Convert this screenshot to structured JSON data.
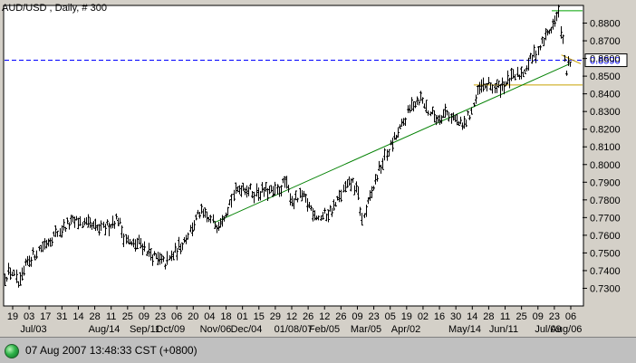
{
  "chart_data": {
    "type": "ohlc",
    "title": "AUD/USD , Daily, # 300",
    "ylim": [
      0.72,
      0.89
    ],
    "y_ticks": [
      "0.7300",
      "0.7400",
      "0.7500",
      "0.7600",
      "0.7700",
      "0.7800",
      "0.7900",
      "0.8000",
      "0.8100",
      "0.8200",
      "0.8300",
      "0.8400",
      "0.8500",
      "0.8600",
      "0.8700",
      "0.8800"
    ],
    "x_day_labels": [
      "19",
      "03",
      "17",
      "31",
      "14",
      "28",
      "11",
      "25",
      "09",
      "23",
      "06",
      "20",
      "04",
      "18",
      "01",
      "15",
      "29",
      "12",
      "26",
      "12",
      "26",
      "09",
      "23",
      "05",
      "19",
      "02",
      "16",
      "30",
      "14",
      "28",
      "11",
      "25",
      "09",
      "23",
      "06"
    ],
    "x_month_labels": [
      "Jul/03",
      "Aug/14",
      "Sep/11",
      "Oct/09",
      "Nov/06",
      "Dec/04",
      "01/08/07",
      "Feb/05",
      "Mar/05",
      "Apr/02",
      "May/14",
      "Jun/11",
      "Jul/09",
      "Aug/06"
    ],
    "current_price": "0.8590",
    "horizontal_level": 0.859,
    "support_level": 0.845,
    "resistance_level": 0.887,
    "trendline": {
      "from": [
        0.37,
        0.767
      ],
      "to": [
        1.0,
        0.857
      ]
    },
    "price_path": [
      [
        0.0,
        0.737
      ],
      [
        0.012,
        0.74
      ],
      [
        0.025,
        0.731
      ],
      [
        0.04,
        0.745
      ],
      [
        0.06,
        0.752
      ],
      [
        0.08,
        0.758
      ],
      [
        0.11,
        0.766
      ],
      [
        0.13,
        0.768
      ],
      [
        0.15,
        0.765
      ],
      [
        0.17,
        0.763
      ],
      [
        0.185,
        0.766
      ],
      [
        0.2,
        0.77
      ],
      [
        0.21,
        0.76
      ],
      [
        0.225,
        0.754
      ],
      [
        0.24,
        0.756
      ],
      [
        0.255,
        0.75
      ],
      [
        0.27,
        0.746
      ],
      [
        0.285,
        0.744
      ],
      [
        0.3,
        0.75
      ],
      [
        0.315,
        0.756
      ],
      [
        0.33,
        0.764
      ],
      [
        0.345,
        0.773
      ],
      [
        0.36,
        0.769
      ],
      [
        0.375,
        0.766
      ],
      [
        0.39,
        0.773
      ],
      [
        0.405,
        0.783
      ],
      [
        0.42,
        0.788
      ],
      [
        0.44,
        0.784
      ],
      [
        0.46,
        0.785
      ],
      [
        0.48,
        0.784
      ],
      [
        0.495,
        0.79
      ],
      [
        0.51,
        0.779
      ],
      [
        0.525,
        0.782
      ],
      [
        0.54,
        0.776
      ],
      [
        0.555,
        0.77
      ],
      [
        0.57,
        0.772
      ],
      [
        0.585,
        0.777
      ],
      [
        0.6,
        0.786
      ],
      [
        0.615,
        0.79
      ],
      [
        0.625,
        0.783
      ],
      [
        0.632,
        0.768
      ],
      [
        0.645,
        0.78
      ],
      [
        0.66,
        0.795
      ],
      [
        0.68,
        0.809
      ],
      [
        0.7,
        0.82
      ],
      [
        0.72,
        0.834
      ],
      [
        0.735,
        0.838
      ],
      [
        0.75,
        0.83
      ],
      [
        0.765,
        0.826
      ],
      [
        0.78,
        0.83
      ],
      [
        0.795,
        0.826
      ],
      [
        0.81,
        0.821
      ],
      [
        0.825,
        0.83
      ],
      [
        0.84,
        0.843
      ],
      [
        0.855,
        0.845
      ],
      [
        0.87,
        0.843
      ],
      [
        0.885,
        0.846
      ],
      [
        0.9,
        0.849
      ],
      [
        0.915,
        0.852
      ],
      [
        0.93,
        0.859
      ],
      [
        0.945,
        0.866
      ],
      [
        0.96,
        0.874
      ],
      [
        0.972,
        0.88
      ],
      [
        0.98,
        0.885
      ],
      [
        0.987,
        0.868
      ],
      [
        0.992,
        0.852
      ],
      [
        0.998,
        0.857
      ],
      [
        1.0,
        0.856
      ]
    ]
  },
  "status": {
    "timestamp": "07 Aug 2007 13:48:33  CST (+0800)"
  },
  "colors": {
    "bars": "#000000",
    "horizontal_line": "#0000ff",
    "trendline": "#008000",
    "support": "#c8a000",
    "resistance": "#00a000",
    "price_tag_bg": "#ffffff",
    "price_tag_text": "#0000ff"
  }
}
